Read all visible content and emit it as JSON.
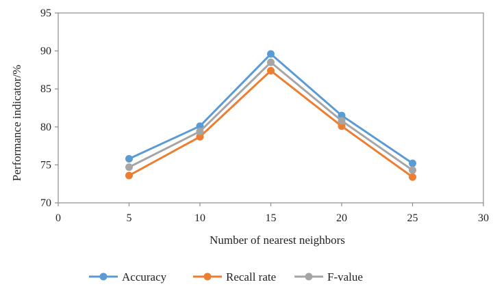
{
  "chart_data": {
    "type": "line",
    "x": [
      5,
      10,
      15,
      20,
      25
    ],
    "xlabel": "Number of nearest neighbors",
    "ylabel": "Performance indicator/%",
    "xlim": [
      0,
      30
    ],
    "ylim": [
      70,
      95
    ],
    "xticks": [
      "0",
      "5",
      "10",
      "15",
      "20",
      "25",
      "30"
    ],
    "yticks": [
      "70",
      "75",
      "80",
      "85",
      "90",
      "95"
    ],
    "grid": false,
    "legend_position": "bottom",
    "series": [
      {
        "name": "Accuracy",
        "color": "#5B9BD5",
        "values": [
          75.8,
          80.1,
          89.6,
          81.5,
          75.2
        ]
      },
      {
        "name": "Recall rate",
        "color": "#ED7D31",
        "values": [
          73.6,
          78.7,
          87.4,
          80.1,
          73.4
        ]
      },
      {
        "name": "F-value",
        "color": "#A5A5A5",
        "values": [
          74.7,
          79.4,
          88.5,
          80.8,
          74.3
        ]
      }
    ]
  }
}
